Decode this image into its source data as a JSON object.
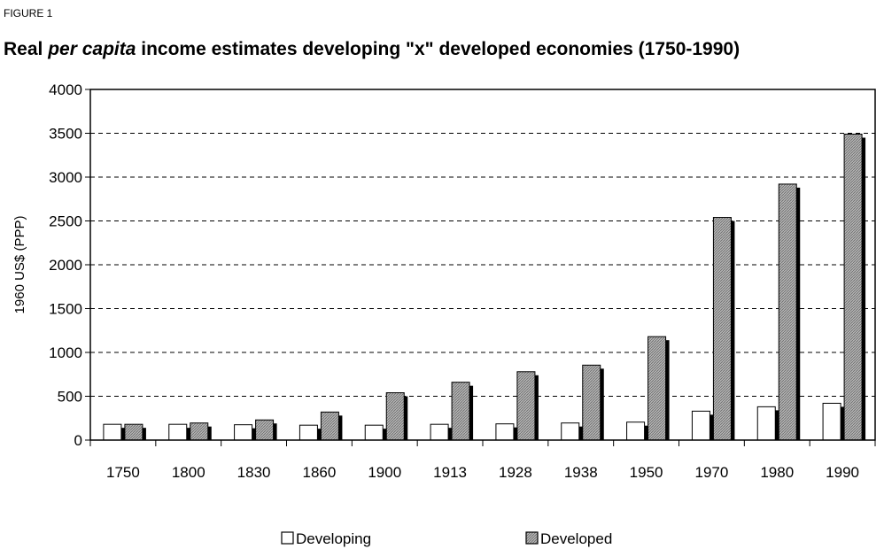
{
  "figure_label": "FIGURE 1",
  "title_parts": {
    "pre": "Real ",
    "italic": "per capita",
    "post": " income estimates developing \"x\" developed economies (1750-1990)"
  },
  "chart_data": {
    "type": "bar",
    "title": "Real per capita income estimates developing \"x\" developed economies (1750-1990)",
    "xlabel": "",
    "ylabel": "1960 US$ (PPP)",
    "ylim": [
      0,
      4000
    ],
    "yticks": [
      0,
      500,
      1000,
      1500,
      2000,
      2500,
      3000,
      3500,
      4000
    ],
    "grid": "horizontal dashed",
    "legend_position": "bottom",
    "categories": [
      "1750",
      "1800",
      "1830",
      "1860",
      "1900",
      "1913",
      "1928",
      "1938",
      "1950",
      "1970",
      "1980",
      "1990"
    ],
    "series": [
      {
        "name": "Developing",
        "color": "#ffffff",
        "values": [
          180,
          180,
          175,
          170,
          170,
          180,
          185,
          195,
          205,
          330,
          380,
          420
        ]
      },
      {
        "name": "Developed",
        "color": "#a6a6a6",
        "values": [
          180,
          195,
          230,
          320,
          540,
          660,
          780,
          855,
          1180,
          2540,
          2920,
          3490
        ]
      }
    ]
  }
}
